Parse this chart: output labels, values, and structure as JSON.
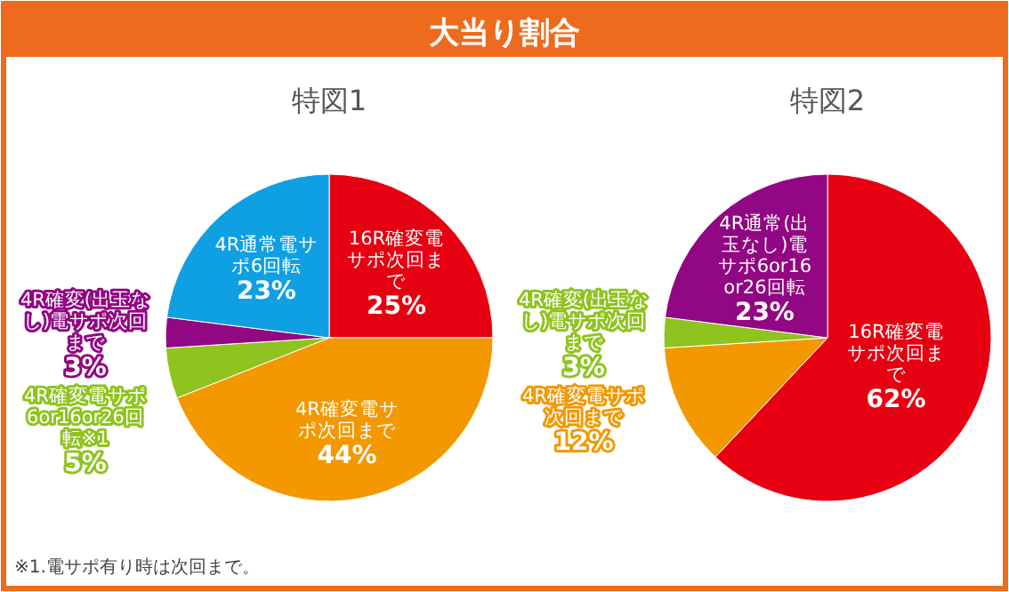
{
  "chart_data": [
    {
      "type": "pie",
      "title": "大当り割合",
      "subtitle": "特図1",
      "categories": [
        "16R確変電サポ次回まで",
        "4R確変電サポ次回まで",
        "4R確変電サポ6or16or26回転※1",
        "4R確変(出玉なし)電サポ次回まで",
        "4R通常電サポ6回転"
      ],
      "values": [
        25,
        44,
        5,
        3,
        23
      ],
      "value_labels": [
        "25%",
        "44%",
        "5%",
        "3%",
        "23%"
      ],
      "colors": [
        "#e60012",
        "#f39800",
        "#8fc31f",
        "#920783",
        "#0fa0e3"
      ],
      "annotations": [
        "※1.電サポ有り時は次回まで。"
      ]
    },
    {
      "type": "pie",
      "subtitle": "特図2",
      "categories": [
        "16R確変電サポ次回まで",
        "4R確変電サポ次回まで",
        "4R確変(出玉なし)電サポ次回まで",
        "4R通常(出玉なし)電サポ6or16or26回転"
      ],
      "values": [
        62,
        12,
        3,
        23
      ],
      "value_labels": [
        "62%",
        "12%",
        "3%",
        "23%"
      ],
      "colors": [
        "#e60012",
        "#f39800",
        "#8fc31f",
        "#920783"
      ]
    }
  ]
}
